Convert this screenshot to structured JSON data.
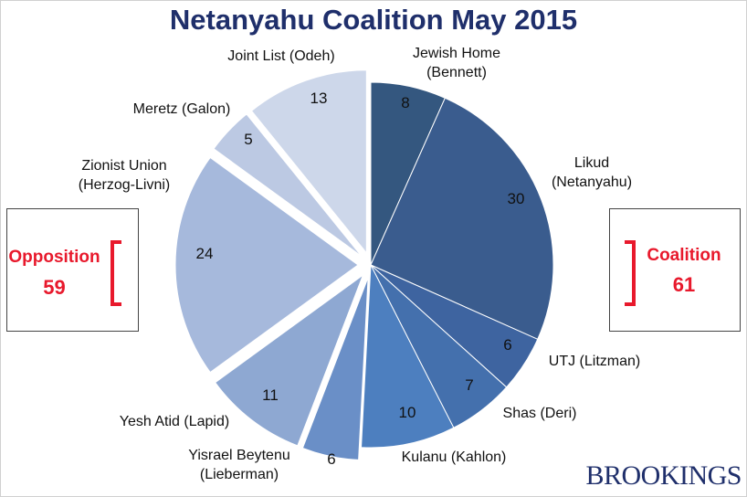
{
  "title": "Netanyahu Coalition May 2015",
  "brand": "BROOKINGS",
  "opposition": {
    "label": "Opposition",
    "seats": "59",
    "color": "#e8192c"
  },
  "coalition": {
    "label": "Coalition",
    "seats": "61",
    "color": "#e8192c"
  },
  "chart_data": {
    "type": "pie",
    "title": "Netanyahu Coalition May 2015",
    "total": 120,
    "slices": [
      {
        "name": "Jewish Home (Bennett)",
        "lines": [
          "Jewish Home",
          "(Bennett)"
        ],
        "value": 8,
        "group": "coalition",
        "color": "#34577f",
        "exploded": false
      },
      {
        "name": "Likud (Netanyahu)",
        "lines": [
          "Likud",
          "(Netanyahu)"
        ],
        "value": 30,
        "group": "coalition",
        "color": "#3a5c8e",
        "exploded": false
      },
      {
        "name": "UTJ (Litzman)",
        "lines": [
          "UTJ  (Litzman)"
        ],
        "value": 6,
        "group": "coalition",
        "color": "#3e64a0",
        "exploded": false
      },
      {
        "name": "Shas (Deri)",
        "lines": [
          "Shas  (Deri)"
        ],
        "value": 7,
        "group": "coalition",
        "color": "#4470ad",
        "exploded": false
      },
      {
        "name": "Kulanu (Kahlon)",
        "lines": [
          "Kulanu  (Kahlon)"
        ],
        "value": 10,
        "group": "coalition",
        "color": "#4d7fbf",
        "exploded": false
      },
      {
        "name": "Yisrael Beytenu (Lieberman)",
        "lines": [
          "Yisrael Beytenu",
          "(Lieberman)"
        ],
        "value": 6,
        "group": "opposition",
        "color": "#6a8fc7",
        "exploded": true
      },
      {
        "name": "Yesh Atid (Lapid)",
        "lines": [
          "Yesh Atid (Lapid)"
        ],
        "value": 11,
        "group": "opposition",
        "color": "#8ea8d2",
        "exploded": true
      },
      {
        "name": "Zionist Union (Herzog-Livni)",
        "lines": [
          "Zionist Union",
          "(Herzog-Livni)"
        ],
        "value": 24,
        "group": "opposition",
        "color": "#a6b9dc",
        "exploded": true
      },
      {
        "name": "Meretz (Galon)",
        "lines": [
          "Meretz (Galon)"
        ],
        "value": 5,
        "group": "opposition",
        "color": "#bcc9e3",
        "exploded": true
      },
      {
        "name": "Joint List (Odeh)",
        "lines": [
          "Joint List (Odeh)"
        ],
        "value": 13,
        "group": "opposition",
        "color": "#cdd7ea",
        "exploded": true
      }
    ]
  }
}
